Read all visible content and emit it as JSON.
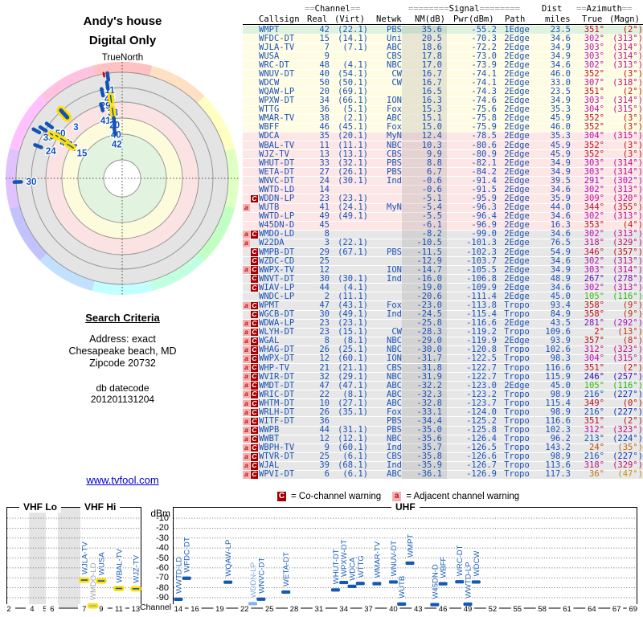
{
  "header": {
    "title": "Andy's house",
    "subtitle": "Digital Only"
  },
  "radar": {
    "north_label": "TrueNorth",
    "ring_colors": {
      "center": "#ffffff",
      "green": "#e2f4e0",
      "yellow": "#fcfbdc",
      "pink": "#fbe3e3",
      "gray": "#e4e4e4"
    },
    "marker_color": "#1353b4",
    "highlight_color": "#ffe000",
    "markers": [
      {
        "ch": "11",
        "az": 352,
        "r": 128
      },
      {
        "ch": "46",
        "az": 351,
        "r": 117
      },
      {
        "ch": "29",
        "az": 347,
        "r": 110
      },
      {
        "ch": "38",
        "az": 352,
        "r": 100,
        "hl": true
      },
      {
        "ch": "41",
        "az": 344,
        "r": 92
      },
      {
        "ch": "20",
        "az": 352,
        "r": 84,
        "hl": true
      },
      {
        "ch": "40",
        "az": 352,
        "r": 72
      },
      {
        "ch": "42",
        "az": 351,
        "r": 60
      },
      {
        "ch": "33",
        "az": 299,
        "r": 122
      },
      {
        "ch": "34",
        "az": 302,
        "r": 116
      },
      {
        "ch": "50",
        "az": 306,
        "r": 112
      },
      {
        "ch": "48",
        "az": 302,
        "r": 101,
        "hl": true
      },
      {
        "ch": "9",
        "az": 303,
        "r": 94,
        "hl": true
      },
      {
        "ch": "7",
        "az": 303,
        "r": 87,
        "hl": true
      },
      {
        "ch": "15",
        "az": 302,
        "r": 76,
        "hl": true
      },
      {
        "ch": "3",
        "az": 318,
        "r": 108,
        "big": true,
        "hl": true
      },
      {
        "ch": "24",
        "az": 291,
        "r": 112
      },
      {
        "ch": "30",
        "az": 268,
        "r": 130
      },
      {
        "ch": "",
        "az": 350,
        "r": 131,
        "red": true
      }
    ]
  },
  "search": {
    "heading": "Search Criteria",
    "address_line": "Address: exact",
    "city_line": "Chesapeake beach, MD",
    "zip_line": "Zipcode 20732",
    "datecode_label": "db datecode",
    "datecode": "201201131204"
  },
  "link": {
    "text": "www.tvfool.com"
  },
  "table": {
    "h1": {
      "eq2": "==",
      "eq8": "========",
      "channel": "Channel",
      "signal": "Signal",
      "dist": "Dist",
      "azimuth": "Azimuth"
    },
    "h2": {
      "callsign": "Callsign",
      "real": "Real",
      "virt": "(Virt)",
      "netwk": "Netwk",
      "nm": "NM(dB)",
      "pwr": "Pwr(dBm)",
      "path": "Path",
      "miles": "miles",
      "true": "True",
      "magn": "(Magn)"
    },
    "rows": [
      [
        "WMPT",
        42,
        "(22.1)",
        "PBS",
        35.6,
        -55.2,
        "1Edge",
        23.5,
        351,
        2,
        "green",
        ""
      ],
      [
        "WFDC-DT",
        15,
        "(14.1)",
        "Uni",
        20.5,
        -70.3,
        "2Edge",
        34.6,
        302,
        313,
        "yellow",
        ""
      ],
      [
        "WJLA-TV",
        7,
        "(7.1)",
        "ABC",
        18.6,
        -72.2,
        "2Edge",
        34.9,
        303,
        314,
        "yellow",
        ""
      ],
      [
        "WUSA",
        9,
        "",
        "CBS",
        17.8,
        -73.0,
        "2Edge",
        34.9,
        303,
        314,
        "yellow",
        ""
      ],
      [
        "WRC-DT",
        48,
        "(4.1)",
        "NBC",
        17.0,
        -73.9,
        "2Edge",
        34.6,
        302,
        313,
        "yellow",
        ""
      ],
      [
        "WNUV-DT",
        40,
        "(54.1)",
        "CW",
        16.7,
        -74.1,
        "2Edge",
        46.0,
        352,
        3,
        "yellow",
        ""
      ],
      [
        "WDCW",
        50,
        "(50.1)",
        "CW",
        16.7,
        -74.1,
        "2Edge",
        33.0,
        307,
        318,
        "yellow",
        ""
      ],
      [
        "WQAW-LP",
        20,
        "(69.1)",
        "",
        16.5,
        -74.3,
        "2Edge",
        23.5,
        351,
        2,
        "yellow",
        ""
      ],
      [
        "WPXW-DT",
        34,
        "(66.1)",
        "ION",
        16.3,
        -74.6,
        "2Edge",
        34.9,
        303,
        314,
        "yellow",
        ""
      ],
      [
        "WTTG",
        36,
        "(5.1)",
        "Fox",
        15.3,
        -75.6,
        "2Edge",
        35.3,
        304,
        315,
        "yellow",
        ""
      ],
      [
        "WMAR-TV",
        38,
        "(2.1)",
        "ABC",
        15.1,
        -75.8,
        "2Edge",
        45.9,
        352,
        3,
        "yellow",
        ""
      ],
      [
        "WBFF",
        46,
        "(45.1)",
        "Fox",
        15.0,
        -75.9,
        "2Edge",
        46.0,
        352,
        3,
        "yellow",
        ""
      ],
      [
        "WDCA",
        35,
        "(20.1)",
        "MyN",
        12.4,
        -78.5,
        "2Edge",
        35.3,
        304,
        315,
        "pink",
        ""
      ],
      [
        "WBAL-TV",
        11,
        "(11.1)",
        "NBC",
        10.3,
        -80.6,
        "2Edge",
        45.9,
        352,
        3,
        "pink",
        ""
      ],
      [
        "WJZ-TV",
        13,
        "(13.1)",
        "CBS",
        9.9,
        -80.9,
        "2Edge",
        45.9,
        352,
        3,
        "pink",
        ""
      ],
      [
        "WHUT-DT",
        33,
        "(32.1)",
        "PBS",
        8.8,
        -82.1,
        "2Edge",
        34.9,
        303,
        314,
        "pink",
        ""
      ],
      [
        "WETA-DT",
        27,
        "(26.1)",
        "PBS",
        6.7,
        -84.2,
        "2Edge",
        34.9,
        303,
        314,
        "pink",
        ""
      ],
      [
        "WNVC-DT",
        24,
        "(30.1)",
        "Ind",
        -0.6,
        -91.4,
        "2Edge",
        39.5,
        291,
        302,
        "pink",
        ""
      ],
      [
        "WWTD-LD",
        14,
        "",
        "",
        -0.6,
        -91.5,
        "2Edge",
        34.6,
        302,
        313,
        "pink",
        ""
      ],
      [
        "WDDN-LP",
        23,
        "(23.1)",
        "",
        -5.1,
        -95.9,
        "2Edge",
        35.9,
        309,
        320,
        "pink",
        "C"
      ],
      [
        "WUTB",
        41,
        "(24.1)",
        "MyN",
        -5.4,
        -96.3,
        "2Edge",
        44.0,
        344,
        355,
        "pink",
        "a"
      ],
      [
        "WWTD-LP",
        49,
        "(49.1)",
        "",
        -5.5,
        -96.4,
        "2Edge",
        34.6,
        302,
        313,
        "pink",
        ""
      ],
      [
        "W45DN-D",
        45,
        "",
        "",
        -6.1,
        -96.9,
        "2Edge",
        16.3,
        353,
        4,
        "pink",
        ""
      ],
      [
        "WMDO-LD",
        8,
        "",
        "",
        -8.2,
        -99.0,
        "2Edge",
        34.6,
        302,
        313,
        "gray",
        "aC"
      ],
      [
        "W22DA",
        3,
        "(22.1)",
        "",
        -10.5,
        -101.3,
        "2Edge",
        76.5,
        318,
        329,
        "gray",
        "a"
      ],
      [
        "WMPB-DT",
        29,
        "(67.1)",
        "PBS",
        -11.5,
        -102.3,
        "2Edge",
        54.9,
        346,
        357,
        "gray",
        "C"
      ],
      [
        "WZDC-CD",
        25,
        "",
        "",
        -12.9,
        -103.7,
        "2Edge",
        34.6,
        302,
        313,
        "gray",
        "C"
      ],
      [
        "WWPX-TV",
        12,
        "",
        "ION",
        -14.7,
        -105.5,
        "2Edge",
        34.9,
        303,
        314,
        "gray",
        "aC"
      ],
      [
        "WNVT-DT",
        30,
        "(30.1)",
        "Ind",
        -16.0,
        -106.8,
        "2Edge",
        48.9,
        267,
        278,
        "gray",
        "C"
      ],
      [
        "WIAV-LP",
        44,
        "(4.1)",
        "",
        -19.0,
        -109.9,
        "2Edge",
        34.6,
        302,
        313,
        "gray",
        "C"
      ],
      [
        "WNDC-LP",
        2,
        "(11.1)",
        "",
        -20.6,
        -111.4,
        "2Edge",
        45.0,
        105,
        116,
        "gray",
        ""
      ],
      [
        "WPMT",
        47,
        "(43.1)",
        "Fox",
        -23.0,
        -113.8,
        "Tropo",
        93.4,
        358,
        9,
        "gray",
        "aC"
      ],
      [
        "WGCB-DT",
        30,
        "(49.1)",
        "Ind",
        -24.5,
        -115.4,
        "Tropo",
        84.9,
        358,
        9,
        "gray",
        "C"
      ],
      [
        "WDWA-LP",
        23,
        "(23.1)",
        "",
        -25.8,
        -116.6,
        "2Edge",
        43.5,
        281,
        292,
        "gray",
        "aC"
      ],
      [
        "WLYH-DT",
        23,
        "(15.1)",
        "CW",
        -28.3,
        -119.2,
        "Tropo",
        109.6,
        2,
        13,
        "gray",
        "aC"
      ],
      [
        "WGAL",
        8,
        "(8.1)",
        "NBC",
        -29.0,
        -119.9,
        "2Edge",
        93.9,
        357,
        8,
        "gray",
        "aC"
      ],
      [
        "WHAG-DT",
        26,
        "(25.1)",
        "NBC",
        -30.0,
        -120.8,
        "Tropo",
        102.6,
        312,
        323,
        "gray",
        "aC"
      ],
      [
        "WWPX-DT",
        12,
        "(60.1)",
        "ION",
        -31.7,
        -122.5,
        "Tropo",
        98.3,
        304,
        315,
        "gray",
        "aC"
      ],
      [
        "WHP-TV",
        21,
        "(21.1)",
        "CBS",
        -31.8,
        -122.7,
        "Tropo",
        116.6,
        351,
        2,
        "gray",
        "aC"
      ],
      [
        "WVIR-DT",
        32,
        "(29.1)",
        "NBC",
        -31.9,
        -122.7,
        "Tropo",
        115.9,
        246,
        257,
        "gray",
        "aC"
      ],
      [
        "WMDT-DT",
        47,
        "(47.1)",
        "ABC",
        -32.2,
        -123.0,
        "2Edge",
        45.0,
        105,
        116,
        "gray",
        "aC"
      ],
      [
        "WRIC-DT",
        22,
        "(8.1)",
        "ABC",
        -32.3,
        -123.2,
        "Tropo",
        98.9,
        216,
        227,
        "gray",
        "aC"
      ],
      [
        "WHTM-DT",
        10,
        "(27.1)",
        "ABC",
        -32.8,
        -123.7,
        "Tropo",
        115.4,
        349,
        0,
        "gray",
        "aC"
      ],
      [
        "WRLH-DT",
        26,
        "(35.1)",
        "Fox",
        -33.1,
        -124.0,
        "Tropo",
        98.9,
        216,
        227,
        "gray",
        "aC"
      ],
      [
        "WITF-DT",
        36,
        "",
        "PBS",
        -34.4,
        -125.2,
        "Tropo",
        116.6,
        351,
        2,
        "gray",
        "aC"
      ],
      [
        "WWPB",
        44,
        "(31.1)",
        "PBS",
        -35.0,
        -125.8,
        "Tropo",
        102.3,
        312,
        323,
        "gray",
        "aC"
      ],
      [
        "WWBT",
        12,
        "(12.1)",
        "NBC",
        -35.6,
        -126.4,
        "Tropo",
        96.2,
        213,
        224,
        "gray",
        "aC"
      ],
      [
        "WBPH-TV",
        9,
        "(60.1)",
        "Ind",
        -35.7,
        -126.5,
        "Tropo",
        143.2,
        24,
        35,
        "gray",
        "aC"
      ],
      [
        "WTVR-DT",
        25,
        "(6.1)",
        "CBS",
        -35.8,
        -126.6,
        "Tropo",
        98.9,
        216,
        227,
        "gray",
        "aC"
      ],
      [
        "WJAL",
        39,
        "(68.1)",
        "Ind",
        -35.9,
        -126.7,
        "Tropo",
        113.6,
        318,
        329,
        "gray",
        "aC"
      ],
      [
        "WPVI-DT",
        6,
        "(6.1)",
        "ABC",
        -36.1,
        -126.9,
        "Tropo",
        117.3,
        36,
        47,
        "gray",
        "aC"
      ]
    ]
  },
  "legend": {
    "c": "C",
    "a": "a",
    "co_text": "= Co-channel warning",
    "adj_text": "= Adjacent channel warning"
  },
  "bottom": {
    "vhf_lo": "VHF Lo",
    "vhf_hi": "VHF Hi",
    "uhf": "UHF",
    "dbm_label": "dBm",
    "channel_label": "Channel",
    "dbm_ticks": [
      -10,
      -20,
      -30,
      -40,
      -50,
      -60,
      -70,
      -80,
      -90
    ],
    "vhf_ticks": [
      {
        "ch": 2,
        "f": 0.018
      },
      {
        "ch": 4,
        "f": 0.19
      },
      {
        "ch": 5,
        "f": 0.286
      },
      {
        "ch": 6,
        "f": 0.339
      },
      {
        "ch": 7,
        "f": 0.577
      },
      {
        "ch": 9,
        "f": 0.702
      },
      {
        "ch": 11,
        "f": 0.833
      },
      {
        "ch": 13,
        "f": 0.958
      }
    ],
    "vhf_gray_bands": [
      [
        0.167,
        0.292
      ],
      [
        0.381,
        0.548
      ]
    ],
    "uhf_ticks": [
      14,
      16,
      19,
      22,
      25,
      28,
      31,
      34,
      37,
      40,
      43,
      46,
      49,
      52,
      55,
      58,
      61,
      64,
      67,
      69
    ],
    "bar_color": "#1558b4",
    "muted_bar_color": "#8ab4e4",
    "label_color": "#1558b4",
    "vhf_bars": [
      {
        "callsign": "WJLA-TV",
        "ch": 7,
        "f": 0.577,
        "pwr": -72.2,
        "hl": true
      },
      {
        "callsign": "WMDO-LD",
        "ch": 8,
        "f": 0.64,
        "pwr": -99.0,
        "hl": true,
        "muted": true,
        "label_color": "#9aa0a8"
      },
      {
        "callsign": "WUSA",
        "ch": 9,
        "f": 0.702,
        "pwr": -73.0,
        "hl": true
      },
      {
        "callsign": "WBAL-TV",
        "ch": 11,
        "f": 0.833,
        "pwr": -80.6,
        "hl": true
      },
      {
        "callsign": "WJZ-TV",
        "ch": 13,
        "f": 0.958,
        "pwr": -80.9,
        "hl": true
      }
    ],
    "uhf_bars": [
      {
        "callsign": "WWTD-LD",
        "ch": 14,
        "pwr": -91.5
      },
      {
        "callsign": "WFDC-DT",
        "ch": 15,
        "pwr": -70.3
      },
      {
        "callsign": "WQAW-LP",
        "ch": 20,
        "pwr": -74.3
      },
      {
        "callsign": "WDDN-LP",
        "ch": 23,
        "pwr": -95.9,
        "muted": true,
        "label_color": "#7fa8dc"
      },
      {
        "callsign": "WNVC-DT",
        "ch": 24,
        "pwr": -91.4
      },
      {
        "callsign": "WETA-DT",
        "ch": 27,
        "pwr": -84.2
      },
      {
        "callsign": "WHUT-DT",
        "ch": 33,
        "pwr": -82.1
      },
      {
        "callsign": "WPXW-DT",
        "ch": 34,
        "pwr": -74.6
      },
      {
        "callsign": "WDCA",
        "ch": 35,
        "pwr": -78.5
      },
      {
        "callsign": "WTTG",
        "ch": 36,
        "pwr": -75.6
      },
      {
        "callsign": "WMAR-TV",
        "ch": 38,
        "pwr": -75.8
      },
      {
        "callsign": "WNUV-DT",
        "ch": 40,
        "pwr": -74.1
      },
      {
        "callsign": "WUTB",
        "ch": 41,
        "pwr": -96.3
      },
      {
        "callsign": "WMPT",
        "ch": 42,
        "pwr": -55.2
      },
      {
        "callsign": "W45DN-D",
        "ch": 45,
        "pwr": -96.9
      },
      {
        "callsign": "WBFF",
        "ch": 46,
        "pwr": -75.9
      },
      {
        "callsign": "WRC-DT",
        "ch": 48,
        "pwr": -73.9
      },
      {
        "callsign": "WWTD-LP",
        "ch": 49,
        "pwr": -96.4
      },
      {
        "callsign": "WDCW",
        "ch": 50,
        "pwr": -74.1
      }
    ]
  },
  "chart_data": [
    {
      "type": "scatter",
      "name": "azimuth-signal-radar",
      "title": "Andy's house — Digital Only",
      "annotations": [
        "TrueNorth"
      ],
      "points": [
        {
          "label": "11",
          "azimuth_deg": 352
        },
        {
          "label": "46",
          "azimuth_deg": 351
        },
        {
          "label": "29",
          "azimuth_deg": 347
        },
        {
          "label": "38",
          "azimuth_deg": 352
        },
        {
          "label": "41",
          "azimuth_deg": 344
        },
        {
          "label": "20",
          "azimuth_deg": 352
        },
        {
          "label": "40",
          "azimuth_deg": 352
        },
        {
          "label": "42",
          "azimuth_deg": 351
        },
        {
          "label": "33",
          "azimuth_deg": 299
        },
        {
          "label": "34",
          "azimuth_deg": 302
        },
        {
          "label": "50",
          "azimuth_deg": 306
        },
        {
          "label": "48",
          "azimuth_deg": 302
        },
        {
          "label": "9",
          "azimuth_deg": 303
        },
        {
          "label": "7",
          "azimuth_deg": 303
        },
        {
          "label": "15",
          "azimuth_deg": 302
        },
        {
          "label": "3",
          "azimuth_deg": 318
        },
        {
          "label": "24",
          "azimuth_deg": 291
        },
        {
          "label": "30",
          "azimuth_deg": 268
        }
      ]
    },
    {
      "type": "bar",
      "name": "vhf-signal-power",
      "title": "VHF Lo / VHF Hi",
      "xlabel": "Channel",
      "ylabel": "dBm",
      "ylim": [
        -90,
        -10
      ],
      "categories": [
        7,
        8,
        9,
        11,
        13
      ],
      "series": [
        {
          "name": "Pwr(dBm)",
          "labels": [
            "WJLA-TV",
            "WMDO-LD",
            "WUSA",
            "WBAL-TV",
            "WJZ-TV"
          ],
          "values": [
            -72.2,
            -99.0,
            -73.0,
            -80.6,
            -80.9
          ]
        }
      ],
      "grid": true,
      "legend_position": "none"
    },
    {
      "type": "bar",
      "name": "uhf-signal-power",
      "title": "UHF",
      "xlabel": "Channel",
      "ylabel": "dBm",
      "ylim": [
        -90,
        -10
      ],
      "categories": [
        14,
        15,
        20,
        23,
        24,
        27,
        33,
        34,
        35,
        36,
        38,
        40,
        41,
        42,
        45,
        46,
        48,
        49,
        50
      ],
      "series": [
        {
          "name": "Pwr(dBm)",
          "labels": [
            "WWTD-LD",
            "WFDC-DT",
            "WQAW-LP",
            "WDDN-LP",
            "WNVC-DT",
            "WETA-DT",
            "WHUT-DT",
            "WPXW-DT",
            "WDCA",
            "WTTG",
            "WMAR-TV",
            "WNUV-DT",
            "WUTB",
            "WMPT",
            "W45DN-D",
            "WBFF",
            "WRC-DT",
            "WWTD-LP",
            "WDCW"
          ],
          "values": [
            -91.5,
            -70.3,
            -74.3,
            -95.9,
            -91.4,
            -84.2,
            -82.1,
            -74.6,
            -78.5,
            -75.6,
            -75.8,
            -74.1,
            -96.3,
            -55.2,
            -96.9,
            -75.9,
            -73.9,
            -96.4,
            -74.1
          ]
        }
      ],
      "grid": true,
      "legend_position": "none"
    }
  ]
}
